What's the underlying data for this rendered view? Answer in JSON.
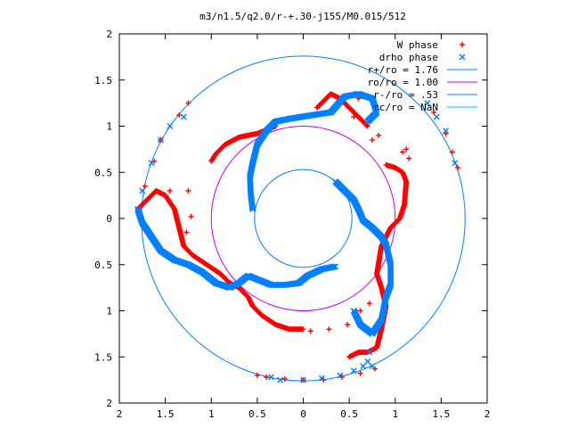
{
  "chart_data": {
    "type": "scatter",
    "title": "m3/n1.5/q2.0/r-+.30-j155/M0.015/512",
    "xlabel": "",
    "ylabel": "",
    "xlim": [
      -2,
      2
    ],
    "ylim": [
      -2,
      2
    ],
    "grid": false,
    "legend_position": "top-right",
    "x_ticks": [
      "2",
      "1.5",
      "1",
      "0.5",
      "0",
      "0.5",
      "1",
      "1.5",
      "2"
    ],
    "x_tick_values": [
      -2,
      -1.5,
      -1,
      -0.5,
      0,
      0.5,
      1,
      1.5,
      2
    ],
    "y_ticks": [
      "2",
      "1.5",
      "1",
      "0.5",
      "0",
      "0.5",
      "1",
      "1.5",
      "2"
    ],
    "y_tick_values": [
      2,
      1.5,
      1,
      0.5,
      0,
      -0.5,
      -1,
      -1.5,
      -2
    ],
    "legend": [
      {
        "label": "W phase",
        "kind": "plus",
        "color": "#ff0000"
      },
      {
        "label": "drho phase",
        "kind": "cross",
        "color": "#0080ff"
      },
      {
        "label": "r+/ro = 1.76",
        "kind": "line",
        "color": "#0080ff"
      },
      {
        "label": "ro/ro = 1.00",
        "kind": "line",
        "color": "#c000ff"
      },
      {
        "label": "r-/ro = .53",
        "kind": "line",
        "color": "#0080ff"
      },
      {
        "label": "rc/ro = NaN",
        "kind": "line",
        "color": "#00c0ff"
      }
    ],
    "circles": [
      {
        "name": "r+/ro = 1.76",
        "radius": 1.76,
        "color": "#0080ff"
      },
      {
        "name": "ro/ro = 1.00",
        "radius": 1.0,
        "color": "#c000ff"
      },
      {
        "name": "r-/ro = .53",
        "radius": 0.53,
        "color": "#0080ff"
      }
    ],
    "series": [
      {
        "name": "W phase",
        "color": "#ff0000",
        "curve": [
          [
            -1.8,
            0.1
          ],
          [
            -1.7,
            0.2
          ],
          [
            -1.6,
            0.3
          ],
          [
            -1.5,
            0.25
          ],
          [
            -1.4,
            0.1
          ],
          [
            -1.35,
            -0.1
          ],
          [
            -1.3,
            -0.3
          ],
          [
            -1.2,
            -0.4
          ],
          [
            -0.9,
            -0.6
          ],
          [
            -0.8,
            -0.7
          ],
          [
            -0.7,
            -0.75
          ],
          [
            -0.6,
            -0.85
          ],
          [
            -0.55,
            -0.95
          ],
          [
            -0.45,
            -1.05
          ],
          [
            -0.3,
            -1.15
          ],
          [
            -0.15,
            -1.2
          ],
          [
            0,
            -1.2
          ],
          [
            0.5,
            -1.5
          ],
          [
            0.6,
            -1.45
          ],
          [
            0.7,
            -1.45
          ],
          [
            0.8,
            -1.4
          ],
          [
            0.85,
            -1.2
          ],
          [
            0.9,
            -0.95
          ],
          [
            0.85,
            -0.75
          ],
          [
            0.8,
            -0.6
          ],
          [
            0.85,
            -0.3
          ],
          [
            0.95,
            -0.1
          ],
          [
            1.05,
            0
          ],
          [
            1.1,
            0.15
          ],
          [
            1.12,
            0.4
          ],
          [
            1.08,
            0.5
          ],
          [
            1.0,
            0.55
          ],
          [
            0.9,
            0.58
          ],
          [
            0.7,
            1.0
          ],
          [
            0.6,
            1.1
          ],
          [
            0.5,
            1.2
          ],
          [
            0.4,
            1.3
          ],
          [
            0.3,
            1.35
          ],
          [
            0.15,
            1.2
          ],
          [
            -0.3,
            1.0
          ],
          [
            -0.5,
            0.92
          ],
          [
            -0.7,
            0.88
          ],
          [
            -0.85,
            0.8
          ],
          [
            -0.95,
            0.7
          ],
          [
            -1.0,
            0.62
          ]
        ],
        "scatter": [
          [
            -1.25,
            1.25
          ],
          [
            -1.35,
            1.12
          ],
          [
            -1.55,
            0.85
          ],
          [
            -1.62,
            0.62
          ],
          [
            -1.72,
            0.35
          ],
          [
            -1.45,
            0.3
          ],
          [
            -1.25,
            0.3
          ],
          [
            -1.22,
            0.02
          ],
          [
            -1.27,
            -0.15
          ],
          [
            0.08,
            -1.22
          ],
          [
            0.28,
            -1.2
          ],
          [
            0.48,
            -1.15
          ],
          [
            0.62,
            -1.0
          ],
          [
            0.72,
            -0.92
          ],
          [
            0.78,
            -1.63
          ],
          [
            0.62,
            -1.68
          ],
          [
            0.42,
            -1.72
          ],
          [
            0.22,
            -1.75
          ],
          [
            0.0,
            -1.75
          ],
          [
            -0.2,
            -1.74
          ],
          [
            -0.4,
            -1.72
          ],
          [
            -0.5,
            -1.7
          ],
          [
            0.55,
            1.1
          ],
          [
            0.75,
            0.85
          ],
          [
            0.82,
            0.9
          ],
          [
            0.6,
            1.3
          ],
          [
            1.08,
            0.72
          ],
          [
            1.15,
            0.65
          ],
          [
            1.12,
            0.75
          ],
          [
            1.42,
            1.15
          ],
          [
            1.55,
            0.92
          ],
          [
            1.62,
            0.72
          ],
          [
            1.68,
            0.55
          ]
        ]
      },
      {
        "name": "drho phase",
        "color": "#0080ff",
        "curve": [
          [
            -1.8,
            0.1
          ],
          [
            -1.75,
            -0.05
          ],
          [
            -1.65,
            -0.2
          ],
          [
            -1.55,
            -0.35
          ],
          [
            -1.4,
            -0.45
          ],
          [
            -1.25,
            -0.5
          ],
          [
            -1.1,
            -0.58
          ],
          [
            -0.95,
            -0.7
          ],
          [
            -0.8,
            -0.75
          ],
          [
            -0.7,
            -0.7
          ],
          [
            -0.6,
            -0.62
          ],
          [
            -0.5,
            -0.66
          ],
          [
            -0.35,
            -0.72
          ],
          [
            -0.2,
            -0.72
          ],
          [
            -0.05,
            -0.7
          ],
          [
            0.05,
            -0.62
          ],
          [
            0.2,
            -0.55
          ],
          [
            0.35,
            -0.52
          ],
          [
            0.55,
            -1.0
          ],
          [
            0.62,
            -1.15
          ],
          [
            0.75,
            -1.25
          ],
          [
            0.85,
            -1.1
          ],
          [
            0.9,
            -0.85
          ],
          [
            0.95,
            -0.72
          ],
          [
            0.95,
            -0.5
          ],
          [
            0.9,
            -0.28
          ],
          [
            0.85,
            -0.2
          ],
          [
            0.75,
            -0.1
          ],
          [
            0.65,
            -0.02
          ],
          [
            0.6,
            0.1
          ],
          [
            0.55,
            0.2
          ],
          [
            0.45,
            0.3
          ],
          [
            0.35,
            0.4
          ],
          [
            0.7,
            1.05
          ],
          [
            0.8,
            1.15
          ],
          [
            0.75,
            1.3
          ],
          [
            0.6,
            1.35
          ],
          [
            0.45,
            1.32
          ],
          [
            0.3,
            1.15
          ],
          [
            0.1,
            1.12
          ],
          [
            -0.15,
            1.08
          ],
          [
            -0.3,
            1.05
          ],
          [
            -0.4,
            0.95
          ],
          [
            -0.5,
            0.8
          ],
          [
            -0.55,
            0.6
          ],
          [
            -0.58,
            0.45
          ],
          [
            -0.57,
            0.25
          ],
          [
            -0.55,
            0.1
          ]
        ],
        "scatter": [
          [
            -1.3,
            1.1
          ],
          [
            -1.45,
            1.0
          ],
          [
            -1.55,
            0.85
          ],
          [
            -1.65,
            0.6
          ],
          [
            -1.75,
            0.3
          ],
          [
            1.35,
            1.25
          ],
          [
            1.45,
            1.1
          ],
          [
            1.55,
            0.95
          ],
          [
            1.65,
            0.6
          ],
          [
            0.7,
            -1.55
          ],
          [
            0.72,
            -1.45
          ],
          [
            0.65,
            -1.6
          ],
          [
            -0.35,
            -1.72
          ],
          [
            -0.25,
            -1.75
          ],
          [
            0.0,
            -1.75
          ],
          [
            0.2,
            -1.73
          ],
          [
            0.4,
            -1.7
          ],
          [
            0.55,
            -1.65
          ],
          [
            0.75,
            -1.6
          ]
        ]
      }
    ]
  }
}
